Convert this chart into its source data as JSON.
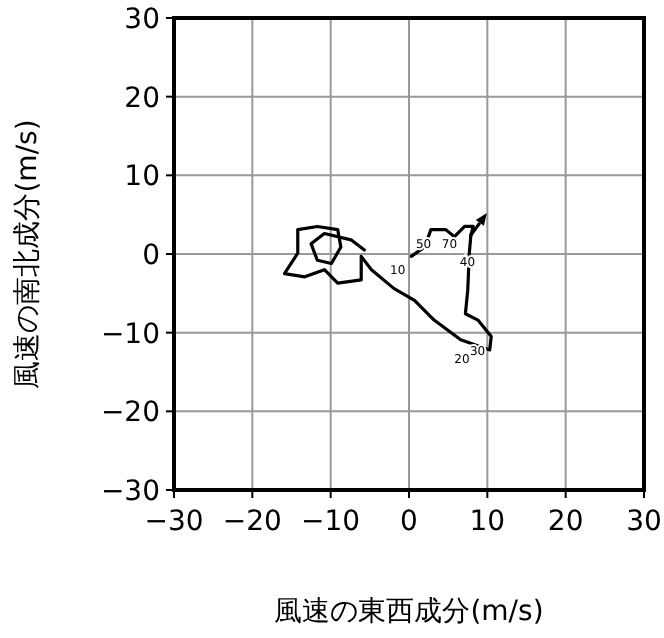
{
  "chart_data": {
    "type": "line",
    "xlabel": "風速の東西成分(m/s)",
    "ylabel": "風速の南北成分(m/s)",
    "xlim": [
      -30,
      30
    ],
    "ylim": [
      -30,
      30
    ],
    "xticks": [
      {
        "value": -30,
        "label": "−30"
      },
      {
        "value": -20,
        "label": "−20"
      },
      {
        "value": -10,
        "label": "−10"
      },
      0,
      10,
      20,
      30
    ],
    "yticks": [
      {
        "value": -30,
        "label": "−30"
      },
      {
        "value": -20,
        "label": "−20"
      },
      {
        "value": -10,
        "label": "−10"
      },
      0,
      10,
      20,
      30
    ],
    "grid": true,
    "line_style": "solid",
    "marker": "none",
    "series": [
      {
        "color": "#000000",
        "x": [
          0.3,
          2.0,
          2.8,
          4.7,
          5.8,
          7.1,
          8.2,
          7.9
        ],
        "values": [
          -0.3,
          0.9,
          3.1,
          3.1,
          2.2,
          3.5,
          3.5,
          2.4
        ]
      },
      {
        "color": "#000000",
        "x": [
          7.9,
          7.7,
          7.5,
          7.2,
          8.8,
          10.5,
          10.3,
          6.6,
          3.2,
          0.7,
          -1.9,
          -4.8,
          -6.1,
          -6.1,
          -9.1,
          -10.8,
          -13.3,
          -15.9,
          -14.2,
          -14.2,
          -11.7,
          -9.1,
          -8.7,
          -9.9,
          -11.7,
          -12.5,
          -10.8,
          -7.4,
          -5.7
        ],
        "values": [
          2.4,
          0.1,
          -4.6,
          -7.6,
          -8.4,
          -10.5,
          -12.2,
          -10.9,
          -8.4,
          -5.9,
          -4.4,
          -2.0,
          -0.3,
          -3.3,
          -3.7,
          -2.0,
          -2.9,
          -2.5,
          0.1,
          3.1,
          3.5,
          3.1,
          0.9,
          -1.2,
          -0.8,
          1.3,
          2.6,
          1.8,
          0.5
        ]
      }
    ],
    "annotations": [
      {
        "text": "10",
        "x": 0.3,
        "y": -0.3
      },
      {
        "text": "50",
        "x": 3.6,
        "y": 3.0
      },
      {
        "text": "70",
        "x": 6.9,
        "y": 3.0
      },
      {
        "text": "40",
        "x": 9.2,
        "y": 0.8
      },
      {
        "text": "30",
        "x": 10.5,
        "y": -10.5
      },
      {
        "text": "20",
        "x": 8.5,
        "y": -11.6
      }
    ]
  }
}
